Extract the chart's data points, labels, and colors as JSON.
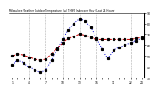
{
  "title": "Milwaukee Weather Outdoor Temperature (vs) THSW Index per Hour (Last 24 Hours)",
  "hours": [
    1,
    2,
    3,
    4,
    5,
    6,
    7,
    8,
    9,
    10,
    11,
    12,
    13,
    14,
    15,
    16,
    17,
    18,
    19,
    20,
    21,
    22,
    23,
    24
  ],
  "temp": [
    50,
    52,
    51,
    49,
    47,
    46,
    47,
    52,
    57,
    62,
    66,
    68,
    70,
    69,
    67,
    65,
    65,
    65,
    65,
    65,
    65,
    65,
    66,
    67
  ],
  "thsw": [
    42,
    46,
    44,
    40,
    37,
    35,
    37,
    46,
    56,
    65,
    74,
    80,
    84,
    82,
    76,
    66,
    56,
    48,
    55,
    58,
    60,
    62,
    64,
    66
  ],
  "temp_color": "#cc0000",
  "thsw_color": "#0000cc",
  "marker_color": "#000000",
  "bg_color": "#ffffff",
  "grid_color": "#888888",
  "ylim": [
    30,
    90
  ],
  "yticks": [
    30,
    40,
    50,
    60,
    70,
    80,
    90
  ],
  "ytick_labels": [
    "30",
    "40",
    "50",
    "60",
    "70",
    "80",
    "90"
  ],
  "vgrid_positions": [
    4,
    7,
    10,
    13,
    16,
    19,
    22
  ],
  "xtick_labels": [
    "1",
    "",
    "",
    "4",
    "",
    "",
    "7",
    "",
    "",
    "10",
    "",
    "",
    "13",
    "",
    "",
    "16",
    "",
    "",
    "19",
    "",
    "",
    "22",
    "",
    "24"
  ]
}
